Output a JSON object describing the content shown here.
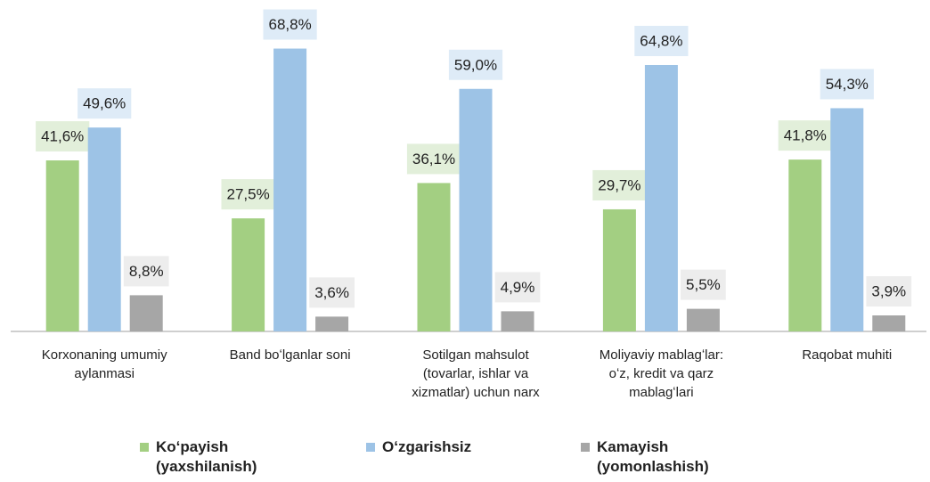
{
  "chart_data": {
    "type": "bar",
    "categories": [
      "Korxonaning umumiy\naylanmasi",
      "Band boʻlganlar soni",
      "Sotilgan mahsulot\n(tovarlar, ishlar va\nxizmatlar) uchun narx",
      "Moliyaviy mablagʻlar:\noʻz, kredit va qarz\nmablagʻlari",
      "Raqobat muhiti"
    ],
    "series": [
      {
        "name": "Koʻpayish\n(yaxshilanish)",
        "color": "#a3cf82",
        "label_bg": "#e2efda",
        "values": [
          41.6,
          27.5,
          36.1,
          29.7,
          41.8
        ],
        "value_labels": [
          "41,6%",
          "27,5%",
          "36,1%",
          "29,7%",
          "41,8%"
        ]
      },
      {
        "name": "Oʻzgarishsiz",
        "color": "#9dc3e6",
        "label_bg": "#deebf7",
        "values": [
          49.6,
          68.8,
          59.0,
          64.8,
          54.3
        ],
        "value_labels": [
          "49,6%",
          "68,8%",
          "59,0%",
          "64,8%",
          "54,3%"
        ]
      },
      {
        "name": "Kamayish\n(yomonlashish)",
        "color": "#a6a6a6",
        "label_bg": "#ededed",
        "values": [
          8.8,
          3.6,
          4.9,
          5.5,
          3.9
        ],
        "value_labels": [
          "8,8%",
          "3,6%",
          "4,9%",
          "5,5%",
          "3,9%"
        ]
      }
    ],
    "ylim": [
      0,
      70
    ]
  }
}
